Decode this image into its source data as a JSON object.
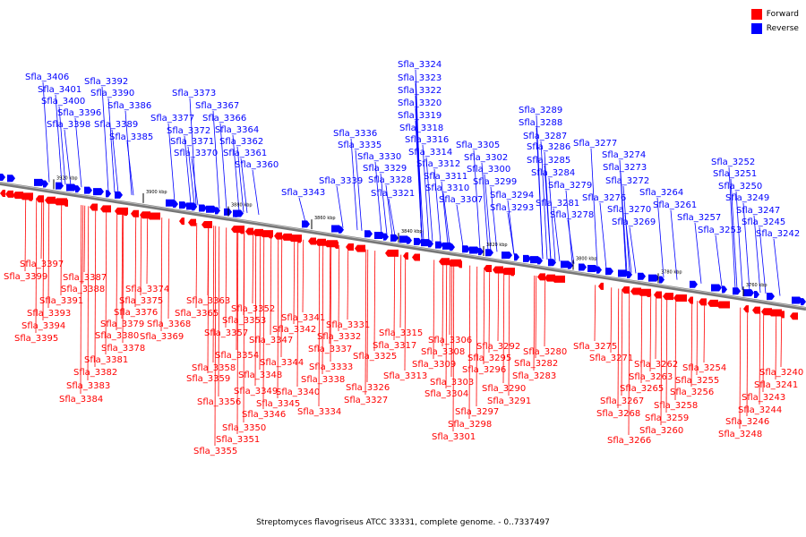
{
  "legend": {
    "forward_label": "Forward",
    "reverse_label": "Reverse",
    "forward_color": "#ff0000",
    "reverse_color": "#0000ff"
  },
  "caption": "Streptomyces flavogriseus ATCC 33331, complete genome. - 0..7337497",
  "ticks": [
    "3920 kbp",
    "3900 kbp",
    "3880 kbp",
    "3860 kbp",
    "3840 kbp",
    "3820 kbp",
    "3800 kbp",
    "3780 kbp",
    "3760 kbp"
  ],
  "reverse_genes": [
    "Sfla_3406",
    "Sfla_3401",
    "Sfla_3400",
    "Sfla_3398",
    "Sfla_3396",
    "Sfla_3392",
    "Sfla_3390",
    "Sfla_3389",
    "Sfla_3386",
    "Sfla_3385",
    "Sfla_3373",
    "Sfla_3377",
    "Sfla_3372",
    "Sfla_3371",
    "Sfla_3370",
    "Sfla_3367",
    "Sfla_3366",
    "Sfla_3364",
    "Sfla_3362",
    "Sfla_3361",
    "Sfla_3360",
    "Sfla_3343",
    "Sfla_3336",
    "Sfla_3335",
    "Sfla_3339",
    "Sfla_3330",
    "Sfla_3329",
    "Sfla_3328",
    "Sfla_3321",
    "Sfla_3324",
    "Sfla_3323",
    "Sfla_3322",
    "Sfla_3320",
    "Sfla_3319",
    "Sfla_3318",
    "Sfla_3316",
    "Sfla_3314",
    "Sfla_3312",
    "Sfla_3311",
    "Sfla_3310",
    "Sfla_3307",
    "Sfla_3305",
    "Sfla_3302",
    "Sfla_3300",
    "Sfla_3299",
    "Sfla_3294",
    "Sfla_3293",
    "Sfla_3289",
    "Sfla_3288",
    "Sfla_3287",
    "Sfla_3286",
    "Sfla_3285",
    "Sfla_3284",
    "Sfla_3281",
    "Sfla_3279",
    "Sfla_3278",
    "Sfla_3277",
    "Sfla_3276",
    "Sfla_3274",
    "Sfla_3273",
    "Sfla_3272",
    "Sfla_3270",
    "Sfla_3269",
    "Sfla_3264",
    "Sfla_3261",
    "Sfla_3257",
    "Sfla_3253",
    "Sfla_3252",
    "Sfla_3251",
    "Sfla_3250",
    "Sfla_3249",
    "Sfla_3247",
    "Sfla_3245",
    "Sfla_3242"
  ],
  "forward_genes": [
    "Sfla_3397",
    "Sfla_3399",
    "Sfla_3387",
    "Sfla_3388",
    "Sfla_3391",
    "Sfla_3393",
    "Sfla_3394",
    "Sfla_3395",
    "Sfla_3374",
    "Sfla_3375",
    "Sfla_3376",
    "Sfla_3379",
    "Sfla_3380",
    "Sfla_3378",
    "Sfla_3368",
    "Sfla_3369",
    "Sfla_3381",
    "Sfla_3382",
    "Sfla_3383",
    "Sfla_3384",
    "Sfla_3363",
    "Sfla_3365",
    "Sfla_3352",
    "Sfla_3353",
    "Sfla_3357",
    "Sfla_3354",
    "Sfla_3358",
    "Sfla_3359",
    "Sfla_3356",
    "Sfla_3350",
    "Sfla_3351",
    "Sfla_3355",
    "Sfla_3347",
    "Sfla_3348",
    "Sfla_3349",
    "Sfla_3344",
    "Sfla_3345",
    "Sfla_3346",
    "Sfla_3341",
    "Sfla_3342",
    "Sfla_3337",
    "Sfla_3338",
    "Sfla_3340",
    "Sfla_3334",
    "Sfla_3331",
    "Sfla_3332",
    "Sfla_3333",
    "Sfla_3315",
    "Sfla_3317",
    "Sfla_3325",
    "Sfla_3326",
    "Sfla_3327",
    "Sfla_3313",
    "Sfla_3306",
    "Sfla_3308",
    "Sfla_3309",
    "Sfla_3303",
    "Sfla_3304",
    "Sfla_3292",
    "Sfla_3295",
    "Sfla_3296",
    "Sfla_3290",
    "Sfla_3291",
    "Sfla_3297",
    "Sfla_3298",
    "Sfla_3301",
    "Sfla_3280",
    "Sfla_3282",
    "Sfla_3283",
    "Sfla_3275",
    "Sfla_3271",
    "Sfla_3262",
    "Sfla_3263",
    "Sfla_3265",
    "Sfla_3267",
    "Sfla_3268",
    "Sfla_3266",
    "Sfla_3258",
    "Sfla_3259",
    "Sfla_3260",
    "Sfla_3254",
    "Sfla_3255",
    "Sfla_3256",
    "Sfla_3240",
    "Sfla_3241",
    "Sfla_3243",
    "Sfla_3244",
    "Sfla_3246",
    "Sfla_3248"
  ]
}
